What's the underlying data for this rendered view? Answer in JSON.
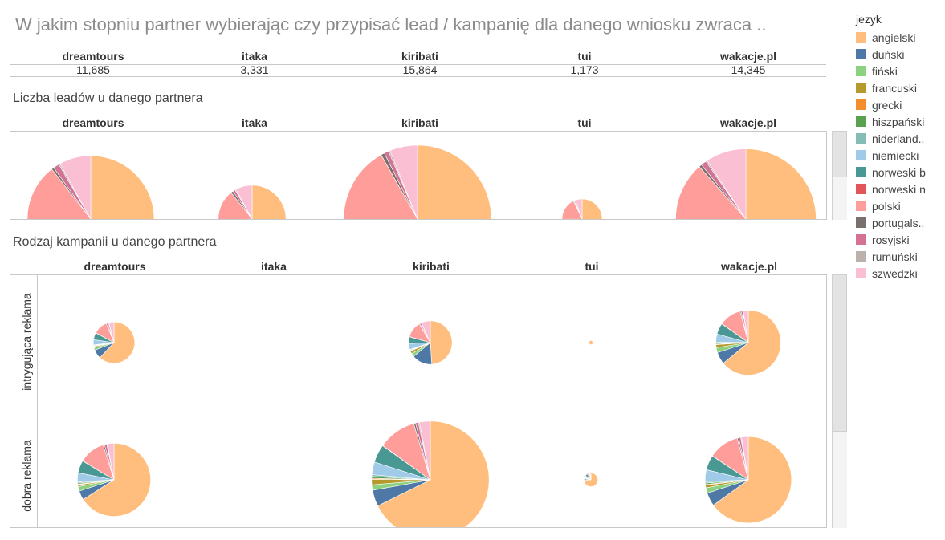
{
  "title": "W jakim stopniu partner wybierając czy przypisać lead / kampanię dla danego wniosku zwraca ..",
  "partners": [
    "dreamtours",
    "itaka",
    "kiribati",
    "tui",
    "wakacje.pl"
  ],
  "totals": [
    "11,685",
    "3,331",
    "15,864",
    "1,173",
    "14,345"
  ],
  "section1_title": "Liczba leadów u danego partnera",
  "section2_title": "Rodzaj kampanii u danego partnera",
  "row_labels": [
    "intrygująca reklama",
    "dobra reklama"
  ],
  "legend_title": "jezyk",
  "languages": [
    {
      "name": "angielski",
      "color": "#ffbe7d"
    },
    {
      "name": "duński",
      "color": "#4e79a7"
    },
    {
      "name": "fiński",
      "color": "#8cd17d"
    },
    {
      "name": "francuski",
      "color": "#b6992d"
    },
    {
      "name": "grecki",
      "color": "#f28e2b"
    },
    {
      "name": "hiszpański",
      "color": "#59a14f"
    },
    {
      "name": "niderland..",
      "color": "#86bcb6"
    },
    {
      "name": "niemiecki",
      "color": "#a0cbe8"
    },
    {
      "name": "norweski b",
      "color": "#499894"
    },
    {
      "name": "norweski n",
      "color": "#e15759"
    },
    {
      "name": "polski",
      "color": "#ff9d9a"
    },
    {
      "name": "portugals..",
      "color": "#79706e"
    },
    {
      "name": "rosyjski",
      "color": "#d37295"
    },
    {
      "name": "rumuński",
      "color": "#bab0ac"
    },
    {
      "name": "szwedzki",
      "color": "#fabfd2"
    }
  ],
  "chart_data": [
    {
      "type": "pie",
      "title": "Liczba leadów u danego partnera",
      "categories": [
        "dreamtours",
        "itaka",
        "kiribati",
        "tui",
        "wakacje.pl"
      ],
      "values": [
        11685,
        3331,
        15864,
        1173,
        14345
      ],
      "slice_shares_percent": {
        "dreamtours": [
          49.4,
          0,
          0.5,
          0.5,
          0.2,
          0.3,
          0.3,
          2.4,
          5.6,
          0.1,
          16.2,
          0.5,
          1.3,
          0.3,
          6.8
        ],
        "itaka": [
          46.0,
          3.0,
          1.5,
          1.0,
          0.3,
          0.5,
          0.5,
          3.0,
          9.5,
          0.1,
          13.0,
          1.0,
          1.0,
          0.4,
          7.0
        ],
        "kiribati": [
          49.0,
          1.3,
          0.5,
          1.5,
          0.3,
          0.3,
          0.3,
          4.0,
          7.0,
          0.1,
          18.5,
          0.7,
          0.9,
          0.3,
          5.5
        ],
        "tui": [
          58.0,
          3.5,
          2.0,
          1.0,
          0.3,
          0.5,
          0.5,
          4.0,
          5.0,
          0.1,
          18.0,
          0.5,
          0.8,
          0.3,
          5.5
        ],
        "wakacje.pl": [
          49.3,
          0.3,
          0.5,
          0.4,
          0.2,
          0.3,
          0.3,
          3.5,
          7.5,
          0.1,
          21.0,
          0.6,
          1.2,
          0.3,
          8.8
        ]
      }
    },
    {
      "type": "pie",
      "title": "Rodzaj kampanii u danego partnera",
      "rows": [
        "intrygująca reklama",
        "dobra reklama"
      ],
      "columns": [
        "dreamtours",
        "itaka",
        "kiribati",
        "tui",
        "wakacje.pl"
      ],
      "relative_size": [
        [
          0.6,
          0,
          0.63,
          0.06,
          0.94
        ],
        [
          1.06,
          0,
          1.7,
          0.2,
          1.25
        ]
      ],
      "slice_shares_percent": {
        "intrygująca reklama": {
          "dreamtours": [
            62.0,
            7.0,
            2.0,
            1.0,
            0.3,
            0.5,
            0.5,
            4.0,
            5.5,
            0.1,
            11.0,
            0.8,
            1.0,
            0.3,
            4.0
          ],
          "kiribati": [
            49.0,
            15.0,
            2.5,
            2.0,
            0.3,
            0.5,
            0.5,
            4.5,
            5.0,
            0.1,
            12.0,
            0.6,
            1.0,
            0.3,
            6.7
          ],
          "tui": [
            100,
            0,
            0,
            0,
            0,
            0,
            0,
            0,
            0,
            0,
            0,
            0,
            0,
            0,
            0
          ],
          "wakacje.pl": [
            64.0,
            6.0,
            2.5,
            1.5,
            0.3,
            0.5,
            0.5,
            4.0,
            5.5,
            0.1,
            11.0,
            0.5,
            0.8,
            0.3,
            2.5
          ]
        },
        "dobra reklama": {
          "dreamtours": [
            66.0,
            4.0,
            2.0,
            0.8,
            0.3,
            0.5,
            0.5,
            4.0,
            5.5,
            0.1,
            11.5,
            0.6,
            1.0,
            0.3,
            2.9
          ],
          "kiribati": [
            68.0,
            4.5,
            1.5,
            1.5,
            0.3,
            0.5,
            0.5,
            3.5,
            5.0,
            0.1,
            10.5,
            0.5,
            0.8,
            0.3,
            3.0
          ],
          "tui": [
            74.0,
            3.0,
            2.0,
            1.0,
            0.3,
            0.5,
            0.5,
            4.0,
            6.0,
            0.1,
            5.0,
            0.5,
            0.5,
            0.3,
            2.3
          ],
          "wakacje.pl": [
            65.0,
            5.0,
            2.0,
            1.0,
            0.3,
            0.5,
            0.5,
            4.5,
            5.5,
            0.1,
            11.5,
            0.5,
            0.8,
            0.3,
            2.5
          ]
        }
      }
    }
  ]
}
